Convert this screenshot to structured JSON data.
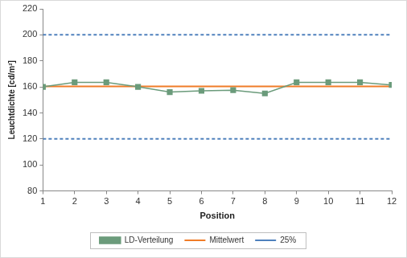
{
  "chart_data": {
    "type": "line",
    "x_label": "Position",
    "y_label": "Leuchtdichte [cd/m²]",
    "x": [
      1,
      2,
      3,
      4,
      5,
      6,
      7,
      8,
      9,
      10,
      11,
      12
    ],
    "series": [
      {
        "name": "LD-Verteilung",
        "color": "#6b9b7b",
        "marker": "square",
        "line_style": "solid",
        "values": [
          160,
          163.5,
          163.5,
          160,
          156,
          157,
          157.5,
          155,
          163.5,
          163.5,
          163.5,
          161.5
        ]
      },
      {
        "name": "Mittelwert",
        "color": "#f07c28",
        "marker": "none",
        "line_style": "solid",
        "values": [
          160.4,
          160.4,
          160.4,
          160.4,
          160.4,
          160.4,
          160.4,
          160.4,
          160.4,
          160.4,
          160.4,
          160.4
        ]
      },
      {
        "name": "25%",
        "color": "#4f81bd",
        "marker": "none",
        "line_style": "dashed",
        "values": [
          200,
          200,
          200,
          200,
          200,
          200,
          200,
          200,
          200,
          200,
          200,
          200
        ]
      },
      {
        "name": "25%",
        "color": "#4f81bd",
        "marker": "none",
        "line_style": "dashed",
        "values": [
          120,
          120,
          120,
          120,
          120,
          120,
          120,
          120,
          120,
          120,
          120,
          120
        ]
      }
    ],
    "xlim": [
      1,
      12
    ],
    "xticks": [
      1,
      2,
      3,
      4,
      5,
      6,
      7,
      8,
      9,
      10,
      11,
      12
    ],
    "ylim": [
      80,
      220
    ],
    "yticks": [
      80,
      100,
      120,
      140,
      160,
      180,
      200,
      220
    ],
    "grid": false,
    "legend": "bottom"
  }
}
